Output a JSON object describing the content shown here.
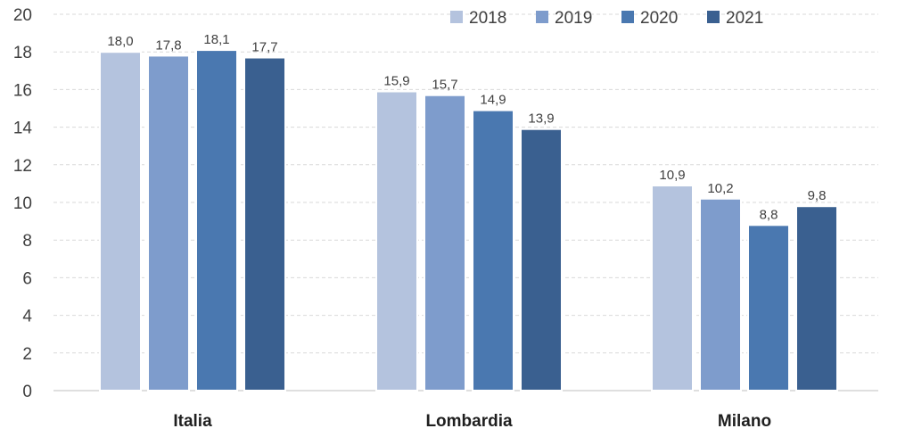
{
  "chart_data": {
    "type": "bar",
    "categories": [
      "Italia",
      "Lombardia",
      "Milano"
    ],
    "series": [
      {
        "name": "2018",
        "values": [
          18.0,
          15.9,
          10.9
        ],
        "labels": [
          "18,0",
          "15,9",
          "10,9"
        ],
        "color": "#b4c3de"
      },
      {
        "name": "2019",
        "values": [
          17.8,
          15.7,
          10.2
        ],
        "labels": [
          "17,8",
          "15,7",
          "10,2"
        ],
        "color": "#7e9ccc"
      },
      {
        "name": "2020",
        "values": [
          18.1,
          14.9,
          8.8
        ],
        "labels": [
          "18,1",
          "14,9",
          "8,8"
        ],
        "color": "#4a78b0"
      },
      {
        "name": "2021",
        "values": [
          17.7,
          13.9,
          9.8
        ],
        "labels": [
          "17,7",
          "13,9",
          "9,8"
        ],
        "color": "#3a6090"
      }
    ],
    "ylim": [
      0,
      20
    ],
    "yticks": [
      "0",
      "2",
      "4",
      "6",
      "8",
      "10",
      "12",
      "14",
      "16",
      "18",
      "20"
    ],
    "grid": true,
    "legend": "top-right"
  }
}
